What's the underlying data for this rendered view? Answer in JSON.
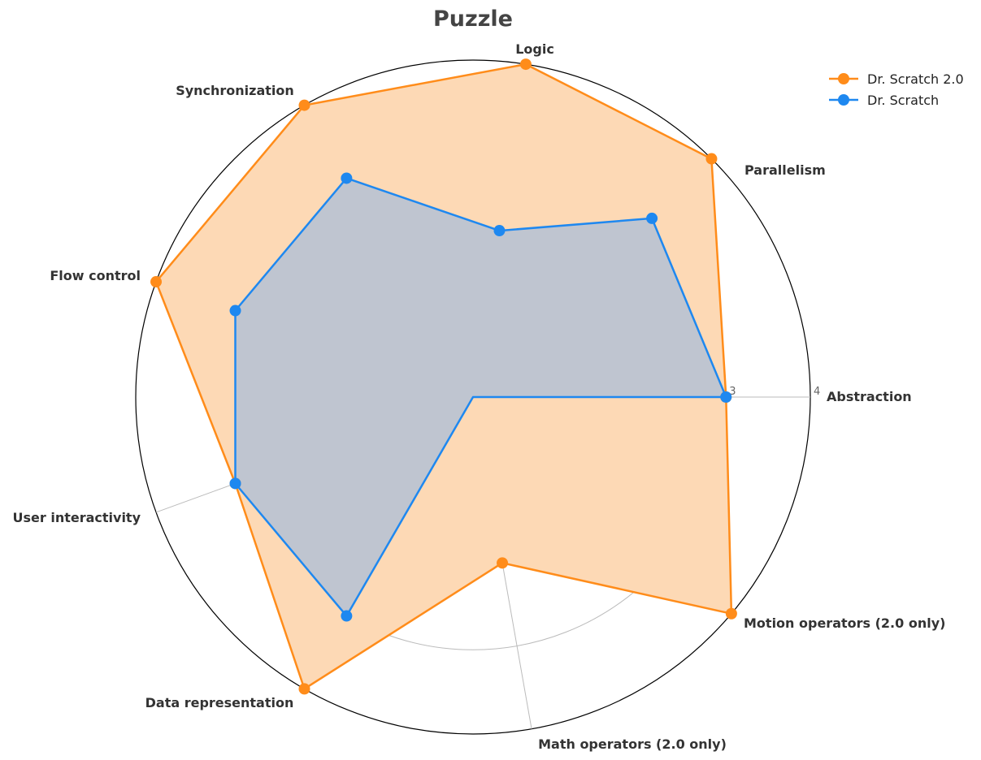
{
  "chart_data": {
    "type": "radar",
    "title": "Puzzle",
    "axes": [
      "Abstraction",
      "Parallelism",
      "Logic",
      "Synchronization",
      "Flow control",
      "User interactivity",
      "Data representation",
      "Math operators (2.0 only)",
      "Motion operators (2.0 only)"
    ],
    "rlim": [
      0,
      4
    ],
    "rticks": [
      "0",
      "1",
      "2",
      "3",
      "4"
    ],
    "grid": true,
    "legend_position": "top-right",
    "series": [
      {
        "name": "Dr. Scratch 2.0",
        "color": "#ff8c1a",
        "fill_color": "#fdd9b5",
        "values": [
          3,
          4,
          4,
          4,
          4,
          3,
          4,
          2,
          4
        ]
      },
      {
        "name": "Dr. Scratch",
        "color": "#1e88f0",
        "fill_color": "#bfc5d0",
        "values": [
          3,
          3,
          2,
          3,
          3,
          3,
          3,
          0,
          0
        ]
      }
    ]
  }
}
